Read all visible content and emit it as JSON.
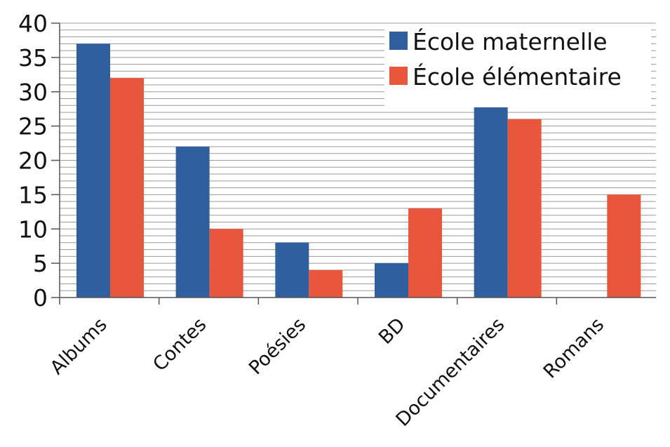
{
  "chart_data": {
    "type": "bar",
    "title": "",
    "xlabel": "",
    "ylabel": "",
    "categories": [
      "Albums",
      "Contes",
      "Poésies",
      "BD",
      "Documentaires",
      "Romans"
    ],
    "series": [
      {
        "name": "École maternelle",
        "values": [
          37,
          22,
          8,
          5,
          28,
          0
        ],
        "color": "#2f5f9e"
      },
      {
        "name": "École élémentaire",
        "values": [
          32,
          10,
          4,
          13,
          26,
          15
        ],
        "color": "#e8573b"
      }
    ],
    "ylim": [
      0,
      40
    ],
    "yticks": [
      0,
      5,
      10,
      15,
      20,
      25,
      30,
      35,
      40
    ],
    "y_minor_step": 1,
    "grid": true,
    "legend_position": "top-right",
    "tick_label_rotation": -45
  }
}
